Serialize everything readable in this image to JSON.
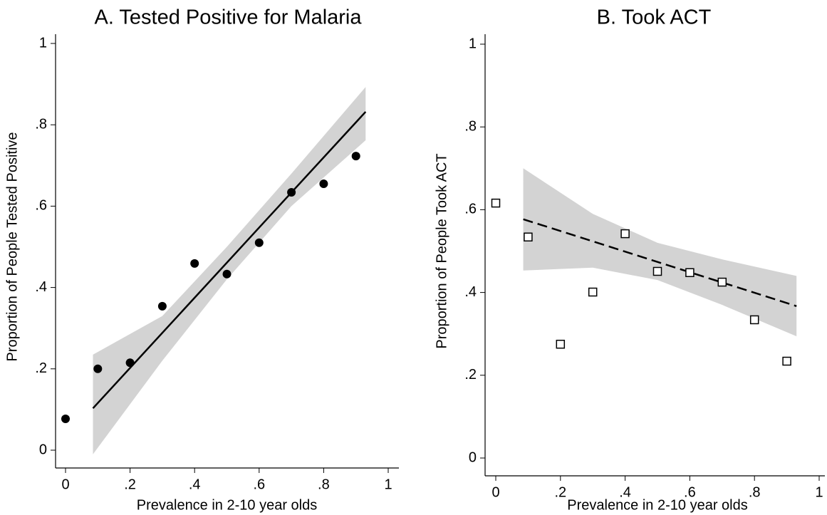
{
  "chart_data": [
    {
      "type": "scatter",
      "title": "A. Tested Positive for Malaria",
      "x_label": "Prevalence in 2-10 year olds",
      "y_label": "Proportion of People Tested Positive",
      "x": [
        0,
        0.1,
        0.2,
        0.3,
        0.4,
        0.5,
        0.6,
        0.7,
        0.8,
        0.9
      ],
      "values": [
        0.077,
        0.2,
        0.215,
        0.354,
        0.459,
        0.433,
        0.51,
        0.634,
        0.655,
        0.723
      ],
      "marker": "circle",
      "color": "#000000",
      "fit": {
        "x": [
          0.085,
          0.93
        ],
        "y": [
          0.103,
          0.832
        ],
        "style": "solid",
        "color": "#000000"
      },
      "band": {
        "x": [
          0.085,
          0.3,
          0.5,
          0.7,
          0.93
        ],
        "lower": [
          -0.01,
          0.22,
          0.42,
          0.6,
          0.762
        ],
        "upper": [
          0.235,
          0.33,
          0.5,
          0.68,
          0.893
        ],
        "color": "#d3d3d3"
      },
      "xlim": [
        0,
        1
      ],
      "ylim": [
        0,
        1
      ],
      "xticks": [
        0,
        {
          "value": 0.2,
          "label": ".2"
        },
        {
          "value": 0.4,
          "label": ".4"
        },
        {
          "value": 0.6,
          "label": ".6"
        },
        {
          "value": 0.8,
          "label": ".8"
        },
        1
      ],
      "yticks": [
        0,
        {
          "value": 0.2,
          "label": ".2"
        },
        {
          "value": 0.4,
          "label": ".4"
        },
        {
          "value": 0.6,
          "label": ".6"
        },
        {
          "value": 0.8,
          "label": ".8"
        },
        1
      ]
    },
    {
      "type": "scatter",
      "title": "B. Took ACT",
      "x_label": "Prevalence in 2-10 year olds",
      "y_label": "Proportion of People Took ACT",
      "x": [
        0,
        0.1,
        0.2,
        0.3,
        0.4,
        0.5,
        0.6,
        0.7,
        0.8,
        0.9
      ],
      "values": [
        0.616,
        0.534,
        0.275,
        0.401,
        0.542,
        0.451,
        0.448,
        0.425,
        0.334,
        0.234
      ],
      "marker": "square",
      "color": "#000000",
      "fit": {
        "x": [
          0.085,
          0.93
        ],
        "y": [
          0.577,
          0.367
        ],
        "style": "dashed",
        "color": "#000000"
      },
      "band": {
        "x": [
          0.085,
          0.3,
          0.5,
          0.7,
          0.93
        ],
        "lower": [
          0.453,
          0.46,
          0.43,
          0.37,
          0.294
        ],
        "upper": [
          0.7,
          0.59,
          0.52,
          0.48,
          0.44
        ],
        "color": "#d3d3d3"
      },
      "xlim": [
        0,
        1
      ],
      "ylim": [
        0,
        1
      ],
      "xticks": [
        0,
        {
          "value": 0.2,
          "label": ".2"
        },
        {
          "value": 0.4,
          "label": ".4"
        },
        {
          "value": 0.6,
          "label": ".6"
        },
        {
          "value": 0.8,
          "label": ".8"
        },
        1
      ],
      "yticks": [
        0,
        {
          "value": 0.2,
          "label": ".2"
        },
        {
          "value": 0.4,
          "label": ".4"
        },
        {
          "value": 0.6,
          "label": ".6"
        },
        {
          "value": 0.8,
          "label": ".8"
        },
        1
      ]
    }
  ]
}
